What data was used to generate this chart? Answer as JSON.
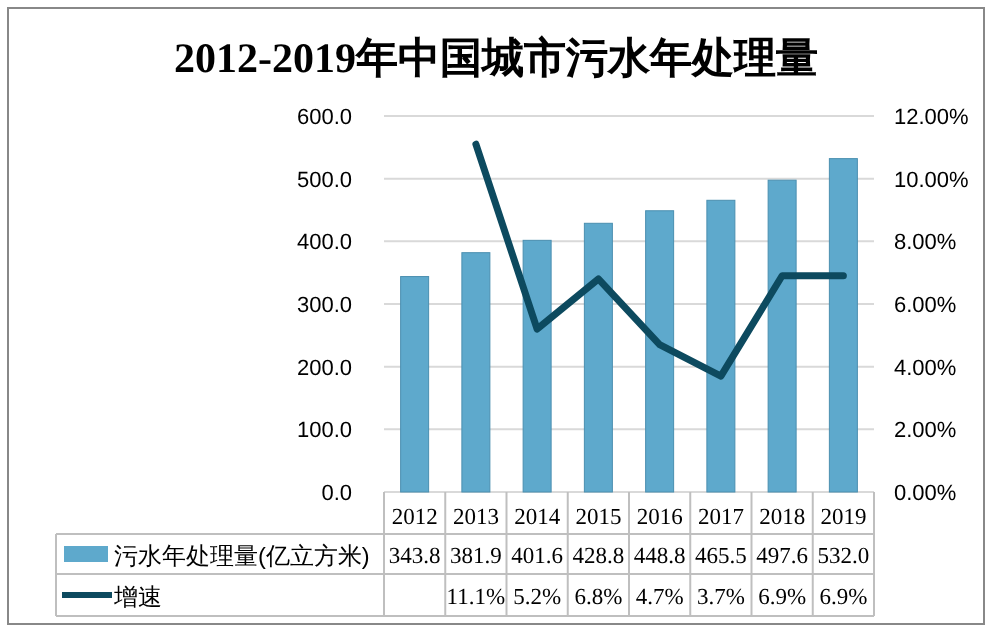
{
  "chart_data": {
    "type": "bar",
    "title": "2012-2019年中国城市污水年处理量",
    "categories": [
      "2012",
      "2013",
      "2014",
      "2015",
      "2016",
      "2017",
      "2018",
      "2019"
    ],
    "series": [
      {
        "name": "污水年处理量(亿立方米)",
        "color": "#5ea9cc",
        "values": [
          343.8,
          381.9,
          401.6,
          428.8,
          448.8,
          465.5,
          497.6,
          532.0
        ],
        "value_labels": [
          "343.8",
          "381.9",
          "401.6",
          "428.8",
          "448.8",
          "465.5",
          "497.6",
          "532.0"
        ]
      },
      {
        "type": "line",
        "name": "增速",
        "color": "#0d4a5f",
        "axis": "y2",
        "values": [
          null,
          11.1,
          5.2,
          6.8,
          4.7,
          3.7,
          6.9,
          6.9
        ],
        "value_labels": [
          null,
          "11.1%",
          "5.2%",
          "6.8%",
          "4.7%",
          "3.7%",
          "6.9%",
          "6.9%"
        ]
      }
    ],
    "ylim": [
      0,
      600
    ],
    "yticks": [
      {
        "value": 0,
        "label": "0.0"
      },
      {
        "value": 100,
        "label": "100.0"
      },
      {
        "value": 200,
        "label": "200.0"
      },
      {
        "value": 300,
        "label": "300.0"
      },
      {
        "value": 400,
        "label": "400.0"
      },
      {
        "value": 500,
        "label": "500.0"
      },
      {
        "value": 600,
        "label": "600.0"
      }
    ],
    "y2lim": [
      0,
      12
    ],
    "y2ticks": [
      {
        "value": 0,
        "label": "0.00%"
      },
      {
        "value": 2,
        "label": "2.00%"
      },
      {
        "value": 4,
        "label": "4.00%"
      },
      {
        "value": 6,
        "label": "6.00%"
      },
      {
        "value": 8,
        "label": "8.00%"
      },
      {
        "value": 10,
        "label": "10.00%"
      },
      {
        "value": 12,
        "label": "12.00%"
      }
    ],
    "grid": "y",
    "legend": "bottom"
  }
}
